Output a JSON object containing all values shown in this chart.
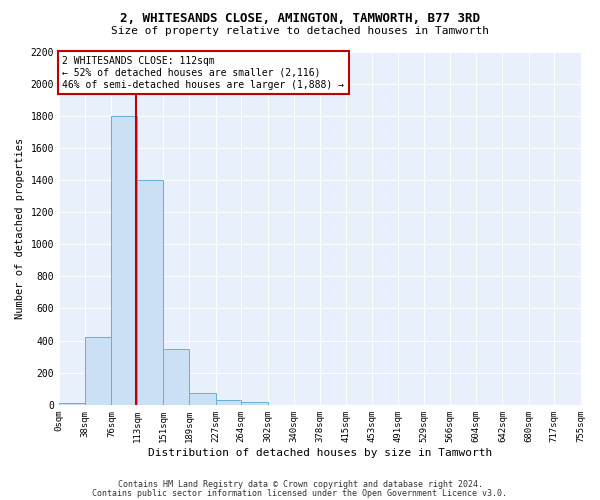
{
  "title_line1": "2, WHITESANDS CLOSE, AMINGTON, TAMWORTH, B77 3RD",
  "title_line2": "Size of property relative to detached houses in Tamworth",
  "xlabel": "Distribution of detached houses by size in Tamworth",
  "ylabel": "Number of detached properties",
  "bar_color": "#cce0f5",
  "bar_edge_color": "#6aaed6",
  "property_line_color": "#c00000",
  "property_size_sqm": 112,
  "annotation_text": "2 WHITESANDS CLOSE: 112sqm\n← 52% of detached houses are smaller (2,116)\n46% of semi-detached houses are larger (1,888) →",
  "bin_edges": [
    0,
    38,
    76,
    113,
    151,
    189,
    227,
    264,
    302,
    340,
    378,
    415,
    453,
    491,
    529,
    566,
    604,
    642,
    680,
    717,
    755
  ],
  "bin_counts": [
    10,
    420,
    1800,
    1400,
    350,
    75,
    30,
    15,
    0,
    0,
    0,
    0,
    0,
    0,
    0,
    0,
    0,
    0,
    0,
    0
  ],
  "xlim_min": 0,
  "xlim_max": 755,
  "ylim_min": 0,
  "ylim_max": 2200,
  "ytick_vals": [
    0,
    200,
    400,
    600,
    800,
    1000,
    1200,
    1400,
    1600,
    1800,
    2000,
    2200
  ],
  "footer_line1": "Contains HM Land Registry data © Crown copyright and database right 2024.",
  "footer_line2": "Contains public sector information licensed under the Open Government Licence v3.0.",
  "plot_background_color": "#e8f0fb"
}
